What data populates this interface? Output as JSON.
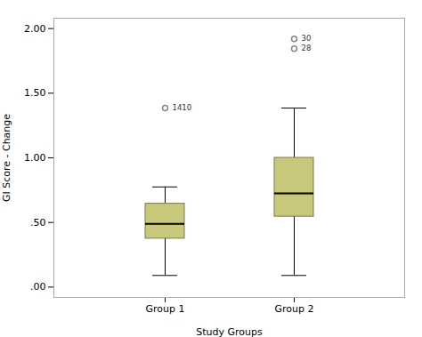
{
  "chart_data": {
    "type": "box",
    "xlabel": "Study Groups",
    "ylabel": "GI Score - Change",
    "categories": [
      "Group 1",
      "Group 2"
    ],
    "boxes": [
      {
        "q1": 0.375,
        "median": 0.49,
        "q3": 0.645,
        "whisker_low": 0.09,
        "whisker_high": 0.775,
        "outliers": [
          1.385
        ],
        "outlier_labels": [
          "1410"
        ]
      },
      {
        "q1": 0.545,
        "median": 0.725,
        "q3": 1.0,
        "whisker_low": 0.09,
        "whisker_high": 1.385,
        "outliers": [
          1.92,
          1.845
        ],
        "outlier_labels": [
          "30",
          "28"
        ]
      }
    ],
    "color": "#c8c87a",
    "ylim": [
      -0.08,
      2.08
    ],
    "yticks": [
      {
        "value": 0.0,
        "label": ".00"
      },
      {
        "value": 0.5,
        "label": ".50"
      },
      {
        "value": 1.0,
        "label": "1.00"
      },
      {
        "value": 1.5,
        "label": "1.50"
      },
      {
        "value": 2.0,
        "label": "2.00"
      }
    ],
    "grid": false
  }
}
